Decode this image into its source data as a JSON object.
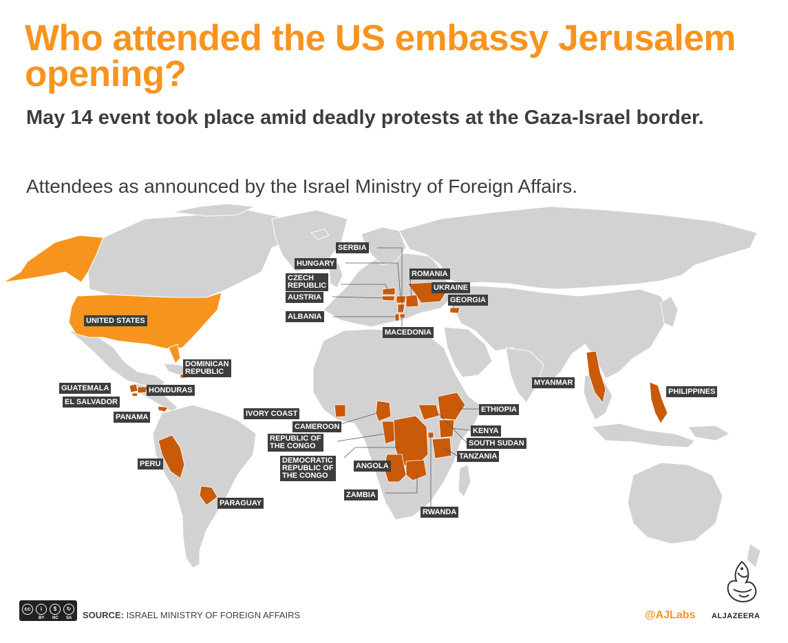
{
  "title": "Who attended the US embassy Jerusalem opening?",
  "subtitle": "May 14 event took place amid deadly protests at the Gaza-Israel border.",
  "note": "Attendees as announced by the Israel Ministry of Foreign Affairs.",
  "legend_colors": {
    "land": "#d2d2d2",
    "united_states": "#f7941d",
    "attendees": "#c85a0a",
    "label_bg": "#3d3d3d"
  },
  "countries": {
    "united_states": "UNITED STATES",
    "serbia": "SERBIA",
    "hungary": "HUNGARY",
    "czech_republic": "CZECH\nREPUBLIC",
    "austria": "AUSTRIA",
    "albania": "ALBANIA",
    "romania": "ROMANIA",
    "ukraine": "UKRAINE",
    "georgia": "GEORGIA",
    "macedonia": "MACEDONIA",
    "dominican_republic": "DOMINICAN\nREPUBLIC",
    "guatemala": "GUATEMALA",
    "honduras": "HONDURAS",
    "el_salvador": "EL SALVADOR",
    "panama": "PANAMA",
    "peru": "PERU",
    "paraguay": "PARAGUAY",
    "ivory_coast": "IVORY COAST",
    "cameroon": "CAMEROON",
    "republic_of_the_congo": "REPUBLIC OF\nTHE CONGO",
    "dr_congo": "DEMOCRATIC\nREPUBLIC OF\nTHE CONGO",
    "angola": "ANGOLA",
    "zambia": "ZAMBIA",
    "rwanda": "RWANDA",
    "ethiopia": "ETHIOPIA",
    "kenya": "KENYA",
    "south_sudan": "SOUTH SUDAN",
    "tanzania": "TANZANIA",
    "myanmar": "MYANMAR",
    "philippines": "PHILIPPINES"
  },
  "footer": {
    "license_icons": [
      "cc-icon",
      "by-icon",
      "nc-icon",
      "sa-icon"
    ],
    "license_tags": [
      "BY",
      "NC",
      "SA"
    ],
    "source_label": "SOURCE:",
    "source_text": " ISRAEL MINISTRY OF FOREIGN AFFAIRS",
    "handle": "@AJLabs",
    "brand": "ALJAZEERA"
  }
}
